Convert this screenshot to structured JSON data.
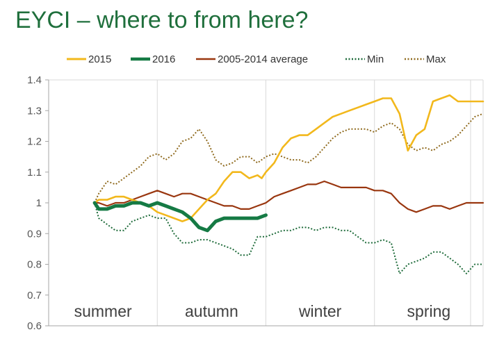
{
  "title": "EYCI – where to from here?",
  "colors": {
    "s2015": "#f2b81c",
    "s2016": "#157a44",
    "avg": "#99360f",
    "min": "#1e6b3a",
    "max": "#8f6a1e",
    "grid": "#d9d9d9",
    "title": "#1f6f3c"
  },
  "chart_data": {
    "type": "line",
    "title": "EYCI – where to from here?",
    "xlabel": "",
    "ylabel": "",
    "ylim": [
      0.6,
      1.4
    ],
    "yticks": [
      "0.6",
      "0.7",
      "0.8",
      "0.9",
      "1",
      "1.1",
      "1.2",
      "1.3",
      "1.4"
    ],
    "xlim": [
      0,
      52
    ],
    "seasons": [
      {
        "label": "summer",
        "start": 0,
        "end": 13
      },
      {
        "label": "autumn",
        "start": 13,
        "end": 26
      },
      {
        "label": "winter",
        "start": 26,
        "end": 39
      },
      {
        "label": "spring",
        "start": 39,
        "end": 52
      }
    ],
    "grid": "vertical season dividers",
    "legend_position": "top",
    "series": [
      {
        "name": "2015",
        "key": "s2015",
        "width": 2.6,
        "dash": "",
        "x": [
          5.5,
          6,
          7,
          8,
          9,
          10,
          11,
          12,
          13,
          14,
          15,
          16,
          17,
          18,
          19,
          20,
          21,
          22,
          23,
          24,
          25,
          25.5,
          26,
          27,
          28,
          29,
          30,
          31,
          32,
          33,
          34,
          35,
          36,
          37,
          38,
          39,
          40,
          41,
          42,
          43,
          44,
          45,
          46,
          47,
          48,
          49,
          50,
          51,
          52
        ],
        "y": [
          1.0,
          1.01,
          1.01,
          1.02,
          1.02,
          1.01,
          1.0,
          0.99,
          0.97,
          0.96,
          0.95,
          0.94,
          0.95,
          0.98,
          1.01,
          1.03,
          1.07,
          1.1,
          1.1,
          1.08,
          1.09,
          1.08,
          1.1,
          1.13,
          1.18,
          1.21,
          1.22,
          1.22,
          1.24,
          1.26,
          1.28,
          1.29,
          1.3,
          1.31,
          1.32,
          1.33,
          1.34,
          1.34,
          1.29,
          1.17,
          1.22,
          1.24,
          1.33,
          1.34,
          1.35,
          1.33,
          1.33,
          1.33,
          1.33
        ]
      },
      {
        "name": "2016",
        "key": "s2016",
        "width": 5,
        "dash": "",
        "x": [
          5.5,
          6,
          7,
          8,
          9,
          10,
          11,
          12,
          13,
          14,
          15,
          16,
          17,
          18,
          19,
          20,
          21,
          22,
          23,
          24,
          25,
          26
        ],
        "y": [
          1.0,
          0.98,
          0.98,
          0.99,
          0.99,
          1.0,
          1.0,
          0.99,
          1.0,
          0.99,
          0.98,
          0.97,
          0.95,
          0.92,
          0.91,
          0.94,
          0.95,
          0.95,
          0.95,
          0.95,
          0.95,
          0.96
        ]
      },
      {
        "name": "2005-2014 average",
        "key": "avg",
        "width": 2.2,
        "dash": "",
        "x": [
          5.5,
          6,
          7,
          8,
          9,
          10,
          11,
          12,
          13,
          14,
          15,
          16,
          17,
          18,
          19,
          20,
          21,
          22,
          23,
          24,
          25,
          26,
          27,
          28,
          29,
          30,
          31,
          32,
          33,
          34,
          35,
          36,
          37,
          38,
          39,
          40,
          41,
          42,
          43,
          44,
          45,
          46,
          47,
          48,
          49,
          50,
          51,
          52
        ],
        "y": [
          1.0,
          1.0,
          0.99,
          1.0,
          1.0,
          1.01,
          1.02,
          1.03,
          1.04,
          1.03,
          1.02,
          1.03,
          1.03,
          1.02,
          1.01,
          1.0,
          0.99,
          0.99,
          0.98,
          0.98,
          0.99,
          1.0,
          1.02,
          1.03,
          1.04,
          1.05,
          1.06,
          1.06,
          1.07,
          1.06,
          1.05,
          1.05,
          1.05,
          1.05,
          1.04,
          1.04,
          1.03,
          1.0,
          0.98,
          0.97,
          0.98,
          0.99,
          0.99,
          0.98,
          0.99,
          1.0,
          1.0,
          1.0
        ]
      },
      {
        "name": "Min",
        "key": "min",
        "width": 2,
        "dash": "2,2.5",
        "x": [
          5.5,
          6,
          7,
          8,
          9,
          10,
          11,
          12,
          13,
          14,
          15,
          16,
          17,
          18,
          19,
          20,
          21,
          22,
          23,
          24,
          25,
          26,
          27,
          28,
          29,
          30,
          31,
          32,
          33,
          34,
          35,
          36,
          37,
          38,
          39,
          40,
          41,
          42,
          43,
          44,
          45,
          46,
          47,
          48,
          49,
          50,
          51,
          52
        ],
        "y": [
          1.0,
          0.95,
          0.93,
          0.91,
          0.91,
          0.94,
          0.95,
          0.96,
          0.95,
          0.95,
          0.9,
          0.87,
          0.87,
          0.88,
          0.88,
          0.87,
          0.86,
          0.85,
          0.83,
          0.83,
          0.89,
          0.89,
          0.9,
          0.91,
          0.91,
          0.92,
          0.92,
          0.91,
          0.92,
          0.92,
          0.91,
          0.91,
          0.89,
          0.87,
          0.87,
          0.88,
          0.87,
          0.77,
          0.8,
          0.81,
          0.82,
          0.84,
          0.84,
          0.82,
          0.8,
          0.77,
          0.8,
          0.8
        ]
      },
      {
        "name": "Max",
        "key": "max",
        "width": 2,
        "dash": "2,2.5",
        "x": [
          5.5,
          6,
          7,
          8,
          9,
          10,
          11,
          12,
          13,
          14,
          15,
          16,
          17,
          18,
          19,
          20,
          21,
          22,
          23,
          24,
          25,
          26,
          27,
          28,
          29,
          30,
          31,
          32,
          33,
          34,
          35,
          36,
          37,
          38,
          39,
          40,
          41,
          42,
          43,
          44,
          45,
          46,
          47,
          48,
          49,
          50,
          51,
          52
        ],
        "y": [
          1.0,
          1.03,
          1.07,
          1.06,
          1.08,
          1.1,
          1.12,
          1.15,
          1.16,
          1.14,
          1.16,
          1.2,
          1.21,
          1.24,
          1.2,
          1.14,
          1.12,
          1.13,
          1.15,
          1.15,
          1.13,
          1.15,
          1.16,
          1.15,
          1.14,
          1.14,
          1.13,
          1.15,
          1.18,
          1.21,
          1.23,
          1.24,
          1.24,
          1.24,
          1.23,
          1.25,
          1.26,
          1.24,
          1.19,
          1.17,
          1.18,
          1.17,
          1.19,
          1.2,
          1.22,
          1.25,
          1.28,
          1.29
        ]
      }
    ]
  }
}
